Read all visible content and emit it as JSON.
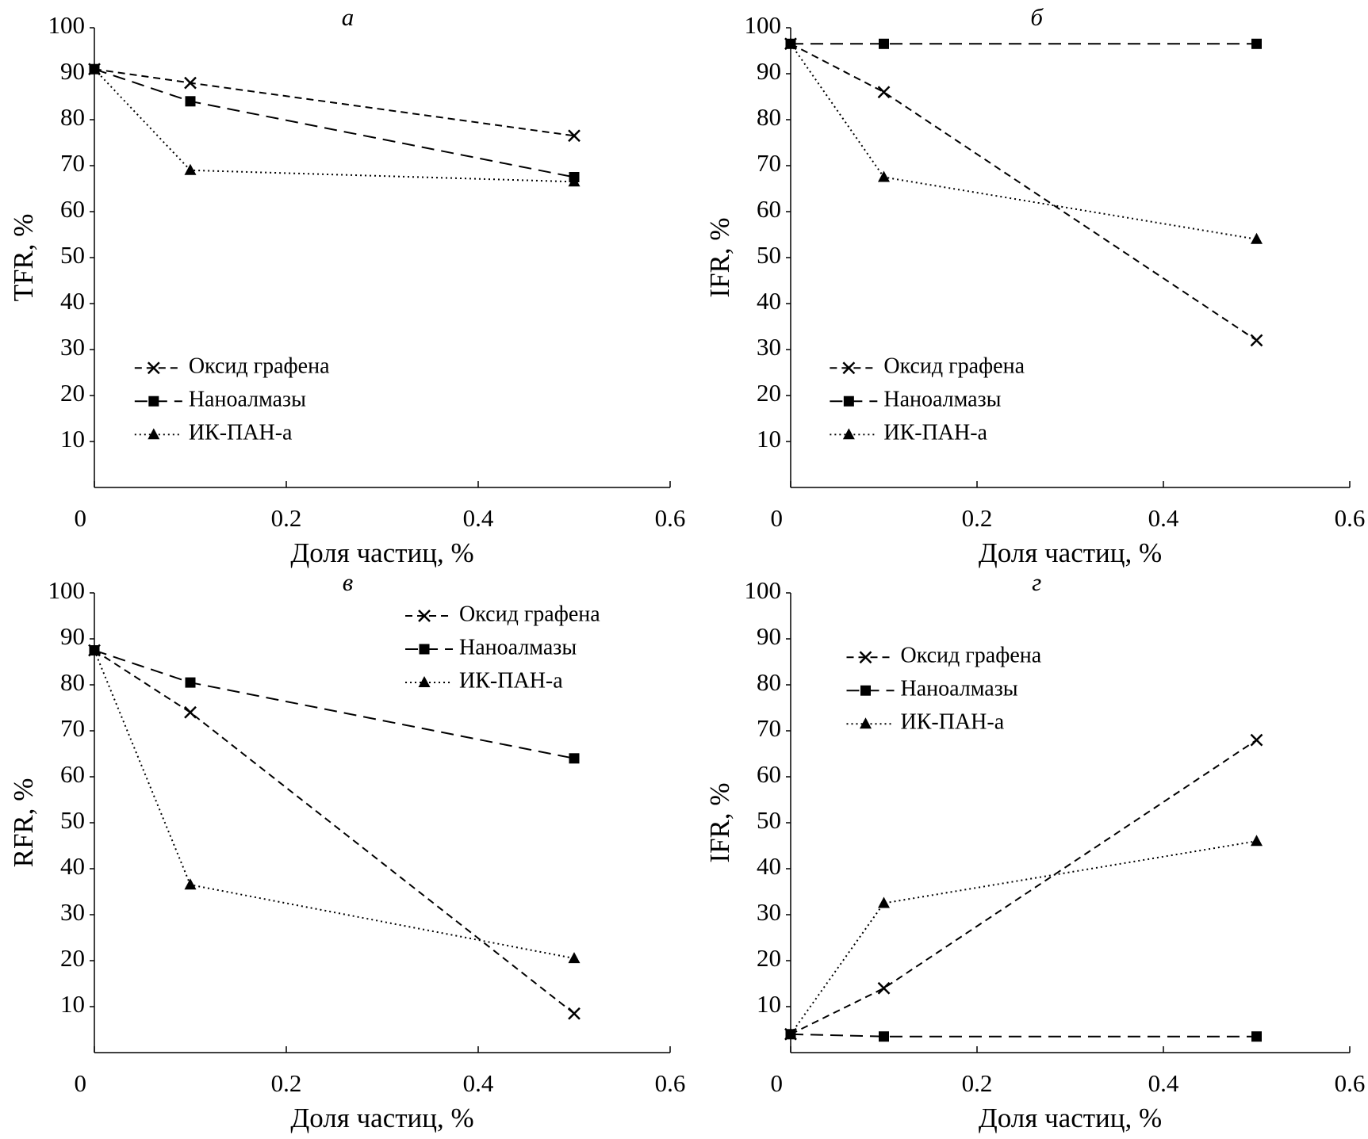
{
  "chart_data": [
    {
      "type": "line",
      "title": "а",
      "xlabel": "Доля частиц, %",
      "ylabel": "TFR, %",
      "x": [
        0,
        0.1,
        0.5
      ],
      "xlim": [
        0,
        0.6
      ],
      "xticks": [
        0,
        0.2,
        0.4,
        0.6
      ],
      "ylim": [
        0,
        100
      ],
      "yticks": [
        10,
        20,
        30,
        40,
        50,
        60,
        70,
        80,
        90,
        100
      ],
      "legend": "lower left",
      "series": [
        {
          "name": "Оксид графена",
          "color": "#000000",
          "marker": "x",
          "dash": "dashed",
          "values": [
            91,
            88,
            76.5
          ]
        },
        {
          "name": "Наноалмазы",
          "color": "#000000",
          "marker": "square",
          "dash": "long-dashed",
          "values": [
            91,
            84,
            67.5
          ]
        },
        {
          "name": "ИК-ПАН-а",
          "color": "#000000",
          "marker": "triangle",
          "dash": "dotted",
          "values": [
            91,
            69,
            66.5
          ]
        }
      ]
    },
    {
      "type": "line",
      "title": "б",
      "xlabel": "Доля частиц, %",
      "ylabel": "IFR, %",
      "x": [
        0,
        0.1,
        0.5
      ],
      "xlim": [
        0,
        0.6
      ],
      "xticks": [
        0,
        0.2,
        0.4,
        0.6
      ],
      "ylim": [
        0,
        100
      ],
      "yticks": [
        10,
        20,
        30,
        40,
        50,
        60,
        70,
        80,
        90,
        100
      ],
      "legend": "lower left",
      "series": [
        {
          "name": "Оксид графена",
          "color": "#000000",
          "marker": "x",
          "dash": "dashed",
          "values": [
            96.5,
            86,
            32
          ]
        },
        {
          "name": "Наноалмазы",
          "color": "#000000",
          "marker": "square",
          "dash": "long-dashed",
          "values": [
            96.5,
            96.5,
            96.5
          ]
        },
        {
          "name": "ИК-ПАН-а",
          "color": "#000000",
          "marker": "triangle",
          "dash": "dotted",
          "values": [
            96.5,
            67.5,
            54
          ]
        }
      ]
    },
    {
      "type": "line",
      "title": "в",
      "xlabel": "Доля частиц, %",
      "ylabel": "RFR, %",
      "x": [
        0,
        0.1,
        0.5
      ],
      "xlim": [
        0,
        0.6
      ],
      "xticks": [
        0,
        0.2,
        0.4,
        0.6
      ],
      "ylim": [
        0,
        100
      ],
      "yticks": [
        10,
        20,
        30,
        40,
        50,
        60,
        70,
        80,
        90,
        100
      ],
      "legend": "upper right",
      "series": [
        {
          "name": "Оксид графена",
          "color": "#000000",
          "marker": "x",
          "dash": "dashed",
          "values": [
            87.5,
            74,
            8.5
          ]
        },
        {
          "name": "Наноалмазы",
          "color": "#000000",
          "marker": "square",
          "dash": "long-dashed",
          "values": [
            87.5,
            80.5,
            64
          ]
        },
        {
          "name": "ИК-ПАН-а",
          "color": "#000000",
          "marker": "triangle",
          "dash": "dotted",
          "values": [
            87.5,
            36.5,
            20.5
          ]
        }
      ]
    },
    {
      "type": "line",
      "title": "г",
      "xlabel": "Доля частиц, %",
      "ylabel": "IFR, %",
      "x": [
        0,
        0.1,
        0.5
      ],
      "xlim": [
        0,
        0.6
      ],
      "xticks": [
        0,
        0.2,
        0.4,
        0.6
      ],
      "ylim": [
        0,
        100
      ],
      "yticks": [
        10,
        20,
        30,
        40,
        50,
        60,
        70,
        80,
        90,
        100
      ],
      "legend": "upper left",
      "series": [
        {
          "name": "Оксид графена",
          "color": "#000000",
          "marker": "x",
          "dash": "dashed",
          "values": [
            4,
            14,
            68
          ]
        },
        {
          "name": "Наноалмазы",
          "color": "#000000",
          "marker": "square",
          "dash": "long-dashed",
          "values": [
            4,
            3.5,
            3.5
          ]
        },
        {
          "name": "ИК-ПАН-а",
          "color": "#000000",
          "marker": "triangle",
          "dash": "dotted",
          "values": [
            4,
            32.5,
            46
          ]
        }
      ]
    }
  ]
}
